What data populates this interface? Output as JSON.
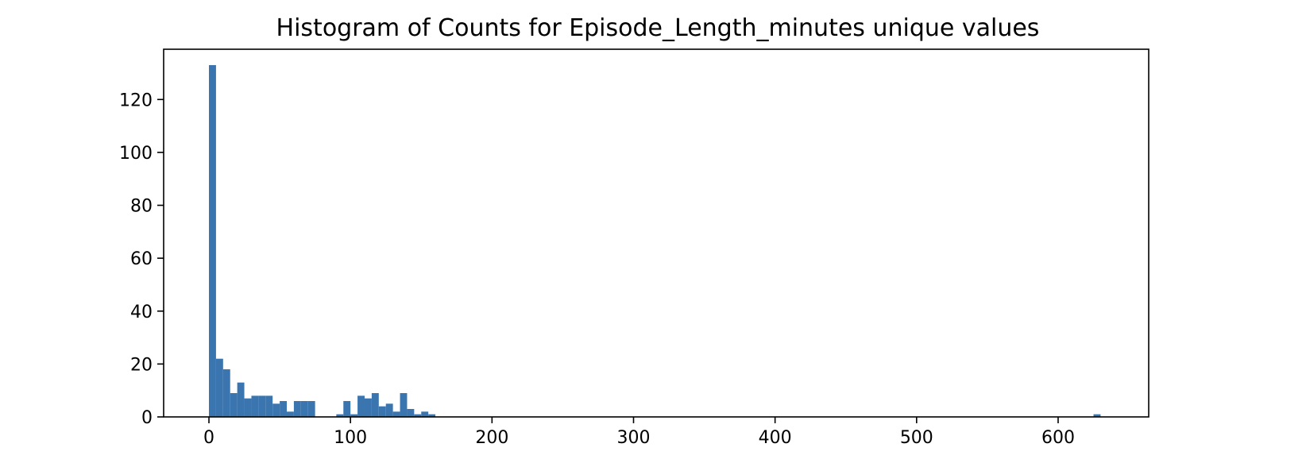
{
  "chart_data": {
    "type": "bar",
    "title": "Histogram of Counts for Episode_Length_minutes unique values",
    "xlabel": "",
    "ylabel": "",
    "xlim": [
      -32,
      664
    ],
    "ylim": [
      0,
      139
    ],
    "grid": false,
    "legend": "none",
    "bar_color": "#3b75af",
    "bin_width": 5,
    "x_ticks": [
      0,
      100,
      200,
      300,
      400,
      500,
      600
    ],
    "y_ticks": [
      0,
      20,
      40,
      60,
      80,
      100,
      120
    ],
    "x_tick_labels": [
      "0",
      "100",
      "200",
      "300",
      "400",
      "500",
      "600"
    ],
    "y_tick_labels": [
      "0",
      "20",
      "40",
      "60",
      "80",
      "100",
      "120"
    ],
    "bins": [
      {
        "x": 0,
        "count": 133
      },
      {
        "x": 5,
        "count": 22
      },
      {
        "x": 10,
        "count": 18
      },
      {
        "x": 15,
        "count": 9
      },
      {
        "x": 20,
        "count": 13
      },
      {
        "x": 25,
        "count": 7
      },
      {
        "x": 30,
        "count": 8
      },
      {
        "x": 35,
        "count": 8
      },
      {
        "x": 40,
        "count": 8
      },
      {
        "x": 45,
        "count": 5
      },
      {
        "x": 50,
        "count": 6
      },
      {
        "x": 55,
        "count": 2
      },
      {
        "x": 60,
        "count": 6
      },
      {
        "x": 65,
        "count": 6
      },
      {
        "x": 70,
        "count": 6
      },
      {
        "x": 90,
        "count": 1
      },
      {
        "x": 95,
        "count": 6
      },
      {
        "x": 100,
        "count": 1
      },
      {
        "x": 105,
        "count": 8
      },
      {
        "x": 110,
        "count": 7
      },
      {
        "x": 115,
        "count": 9
      },
      {
        "x": 120,
        "count": 4
      },
      {
        "x": 125,
        "count": 5
      },
      {
        "x": 130,
        "count": 2
      },
      {
        "x": 135,
        "count": 9
      },
      {
        "x": 140,
        "count": 3
      },
      {
        "x": 145,
        "count": 1
      },
      {
        "x": 150,
        "count": 2
      },
      {
        "x": 155,
        "count": 1
      },
      {
        "x": 625,
        "count": 1
      }
    ]
  }
}
